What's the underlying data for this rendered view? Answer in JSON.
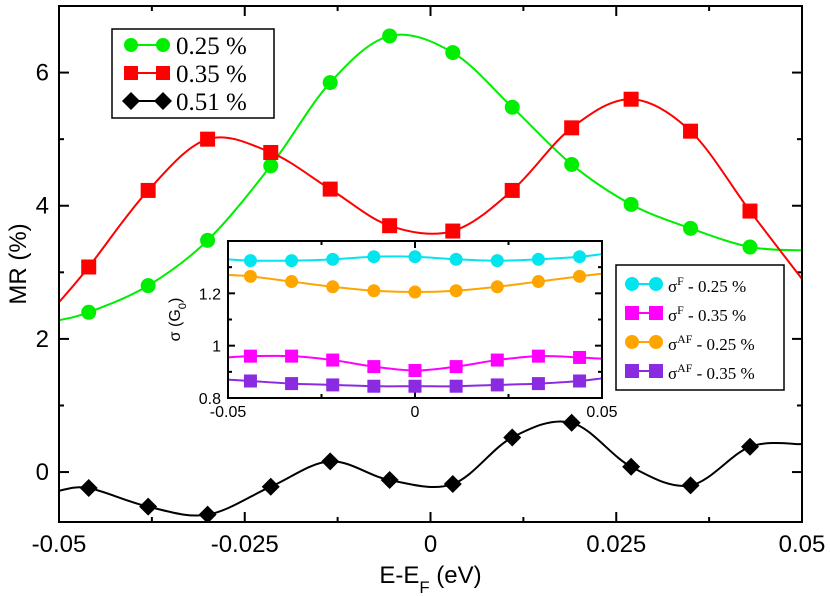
{
  "chart_data": [
    {
      "type": "line",
      "xlabel": "E-E",
      "xlabel_sub": "F",
      "xlabel_unit": " (eV)",
      "ylabel": "MR (%)",
      "xlim": [
        -0.05,
        0.05
      ],
      "ylim": [
        -0.75,
        7.0
      ],
      "xticks": [
        -0.05,
        -0.025,
        0,
        0.025,
        0.05
      ],
      "xtick_labels": [
        "-0.05",
        "-0.025",
        "0",
        "0.025",
        "0.05"
      ],
      "yticks": [
        0,
        2,
        4,
        6
      ],
      "ytick_labels": [
        "0",
        "2",
        "4",
        "6"
      ],
      "legend_position": "top-left",
      "series": [
        {
          "name": "0.25 %",
          "color": "#00ee00",
          "marker": "circle",
          "x": [
            -0.05,
            -0.046,
            -0.038,
            -0.03,
            -0.0215,
            -0.0135,
            -0.0055,
            0.003,
            0.011,
            0.019,
            0.027,
            0.035,
            0.043,
            0.05
          ],
          "y": [
            2.28,
            2.4,
            2.8,
            3.48,
            4.6,
            5.85,
            6.55,
            6.3,
            5.48,
            4.62,
            4.02,
            3.66,
            3.38,
            3.33
          ],
          "markers_x": [
            -0.046,
            -0.038,
            -0.03,
            -0.0215,
            -0.0135,
            -0.0055,
            0.003,
            0.011,
            0.019,
            0.027,
            0.035,
            0.043
          ],
          "markers_y": [
            2.4,
            2.8,
            3.48,
            4.6,
            5.85,
            6.55,
            6.3,
            5.48,
            4.62,
            4.02,
            3.66,
            3.38
          ]
        },
        {
          "name": "0.35 %",
          "color": "#ff0000",
          "marker": "square",
          "x": [
            -0.05,
            -0.046,
            -0.038,
            -0.03,
            -0.0215,
            -0.0135,
            -0.0055,
            0.003,
            0.011,
            0.019,
            0.027,
            0.035,
            0.043,
            0.05
          ],
          "y": [
            2.55,
            3.08,
            4.23,
            5.0,
            4.8,
            4.25,
            3.7,
            3.62,
            4.23,
            5.17,
            5.6,
            5.12,
            3.92,
            2.9
          ],
          "markers_x": [
            -0.046,
            -0.038,
            -0.03,
            -0.0215,
            -0.0135,
            -0.0055,
            0.003,
            0.011,
            0.019,
            0.027,
            0.035,
            0.043
          ],
          "markers_y": [
            3.08,
            4.23,
            5.0,
            4.8,
            4.25,
            3.7,
            3.62,
            4.23,
            5.17,
            5.6,
            5.12,
            3.92
          ]
        },
        {
          "name": "0.51 %",
          "color": "#000000",
          "marker": "diamond",
          "x": [
            -0.05,
            -0.046,
            -0.038,
            -0.03,
            -0.0215,
            -0.0135,
            -0.0055,
            0.003,
            0.011,
            0.019,
            0.027,
            0.035,
            0.043,
            0.05
          ],
          "y": [
            -0.28,
            -0.24,
            -0.52,
            -0.64,
            -0.22,
            0.16,
            -0.12,
            -0.18,
            0.52,
            0.74,
            0.08,
            -0.2,
            0.38,
            0.42
          ],
          "markers_x": [
            -0.046,
            -0.038,
            -0.03,
            -0.0215,
            -0.0135,
            -0.0055,
            0.003,
            0.011,
            0.019,
            0.027,
            0.035,
            0.043
          ],
          "markers_y": [
            -0.24,
            -0.52,
            -0.64,
            -0.22,
            0.16,
            -0.12,
            -0.18,
            0.52,
            0.74,
            0.08,
            -0.2,
            0.38
          ]
        }
      ]
    },
    {
      "type": "line",
      "inset": true,
      "xlabel": "",
      "ylabel": "σ (G",
      "ylabel_sub": "0",
      "ylabel_end": ")",
      "xlim": [
        -0.05,
        0.05
      ],
      "ylim": [
        0.8,
        1.4
      ],
      "xticks": [
        -0.05,
        0,
        0.05
      ],
      "xtick_labels": [
        "-0.05",
        "0",
        "0.05"
      ],
      "yticks": [
        0.8,
        1.0,
        1.2
      ],
      "ytick_labels": [
        "0.8",
        "1",
        "1.2"
      ],
      "legend_position": "right-outside",
      "series": [
        {
          "name": "F",
          "name_prefix": "σ",
          "name_suffix": " - 0.25 %",
          "color": "#00e5ee",
          "marker": "circle",
          "x": [
            -0.05,
            -0.044,
            -0.033,
            -0.022,
            -0.011,
            0,
            0.011,
            0.022,
            0.033,
            0.044,
            0.05
          ],
          "y": [
            1.33,
            1.325,
            1.325,
            1.33,
            1.34,
            1.34,
            1.33,
            1.325,
            1.33,
            1.34,
            1.35
          ],
          "markers_x": [
            -0.044,
            -0.033,
            -0.022,
            -0.011,
            0,
            0.011,
            0.022,
            0.033,
            0.044
          ],
          "markers_y": [
            1.325,
            1.325,
            1.33,
            1.34,
            1.34,
            1.33,
            1.325,
            1.33,
            1.34
          ]
        },
        {
          "name": "F",
          "name_prefix": "σ",
          "name_suffix": " - 0.35 %",
          "color": "#ff00ff",
          "marker": "square",
          "x": [
            -0.05,
            -0.044,
            -0.033,
            -0.022,
            -0.011,
            0,
            0.011,
            0.022,
            0.033,
            0.044,
            0.05
          ],
          "y": [
            0.955,
            0.96,
            0.96,
            0.945,
            0.92,
            0.905,
            0.92,
            0.945,
            0.96,
            0.955,
            0.95
          ],
          "markers_x": [
            -0.044,
            -0.033,
            -0.022,
            -0.011,
            0,
            0.011,
            0.022,
            0.033,
            0.044
          ],
          "markers_y": [
            0.96,
            0.96,
            0.945,
            0.92,
            0.905,
            0.92,
            0.945,
            0.96,
            0.955
          ]
        },
        {
          "name": "AF",
          "name_prefix": "σ",
          "name_suffix": " - 0.25 %",
          "color": "#ffa500",
          "marker": "circle",
          "x": [
            -0.05,
            -0.044,
            -0.033,
            -0.022,
            -0.011,
            0,
            0.011,
            0.022,
            0.033,
            0.044,
            0.05
          ],
          "y": [
            1.27,
            1.265,
            1.245,
            1.225,
            1.21,
            1.205,
            1.21,
            1.225,
            1.245,
            1.265,
            1.275
          ],
          "markers_x": [
            -0.044,
            -0.033,
            -0.022,
            -0.011,
            0,
            0.011,
            0.022,
            0.033,
            0.044
          ],
          "markers_y": [
            1.265,
            1.245,
            1.225,
            1.21,
            1.205,
            1.21,
            1.225,
            1.245,
            1.265
          ]
        },
        {
          "name": "AF",
          "name_prefix": "σ",
          "name_suffix": " - 0.35 %",
          "color": "#8a2be2",
          "marker": "square",
          "x": [
            -0.05,
            -0.044,
            -0.033,
            -0.022,
            -0.011,
            0,
            0.011,
            0.022,
            0.033,
            0.044,
            0.05
          ],
          "y": [
            0.87,
            0.865,
            0.855,
            0.85,
            0.845,
            0.845,
            0.845,
            0.85,
            0.855,
            0.865,
            0.875
          ],
          "markers_x": [
            -0.044,
            -0.033,
            -0.022,
            -0.011,
            0,
            0.011,
            0.022,
            0.033,
            0.044
          ],
          "markers_y": [
            0.865,
            0.855,
            0.85,
            0.845,
            0.845,
            0.845,
            0.85,
            0.855,
            0.865
          ]
        }
      ]
    }
  ]
}
